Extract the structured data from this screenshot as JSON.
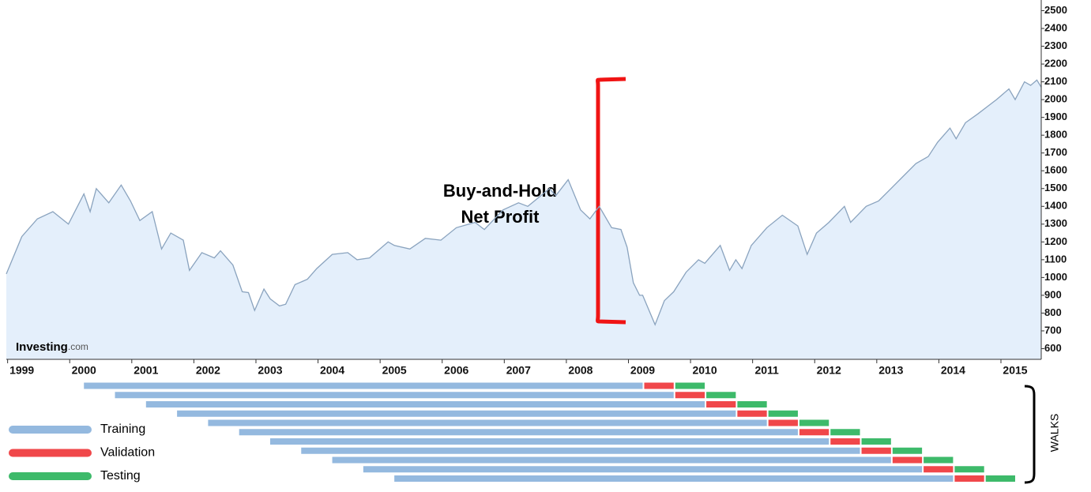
{
  "chart_data": {
    "type": "area",
    "annotation": [
      "Buy-and-Hold",
      "Net Profit"
    ],
    "brand": [
      "Investing",
      ".com"
    ],
    "x": [
      1998.75,
      1999.0,
      1999.25,
      1999.5,
      1999.75,
      2000.0,
      2000.1,
      2000.2,
      2000.4,
      2000.6,
      2000.75,
      2000.9,
      2001.1,
      2001.25,
      2001.4,
      2001.6,
      2001.7,
      2001.9,
      2002.1,
      2002.2,
      2002.4,
      2002.55,
      2002.65,
      2002.75,
      2002.9,
      2003.0,
      2003.15,
      2003.25,
      2003.4,
      2003.6,
      2003.75,
      2004.0,
      2004.25,
      2004.4,
      2004.6,
      2004.9,
      2005.0,
      2005.25,
      2005.5,
      2005.75,
      2006.0,
      2006.3,
      2006.45,
      2006.75,
      2007.0,
      2007.15,
      2007.5,
      2007.6,
      2007.8,
      2008.0,
      2008.15,
      2008.3,
      2008.5,
      2008.65,
      2008.75,
      2008.85,
      2008.95,
      2009.0,
      2009.2,
      2009.35,
      2009.5,
      2009.7,
      2009.9,
      2010.0,
      2010.25,
      2010.4,
      2010.5,
      2010.6,
      2010.75,
      2011.0,
      2011.25,
      2011.5,
      2011.65,
      2011.8,
      2012.0,
      2012.25,
      2012.35,
      2012.6,
      2012.8,
      2013.0,
      2013.2,
      2013.4,
      2013.6,
      2013.75,
      2013.95,
      2014.05,
      2014.2,
      2014.4,
      2014.55,
      2014.7,
      2014.9,
      2015.0,
      2015.15,
      2015.25,
      2015.35,
      2015.42
    ],
    "values": [
      1020,
      1230,
      1330,
      1370,
      1300,
      1470,
      1370,
      1500,
      1420,
      1520,
      1430,
      1320,
      1370,
      1160,
      1250,
      1210,
      1040,
      1140,
      1110,
      1150,
      1070,
      920,
      915,
      815,
      935,
      880,
      840,
      850,
      960,
      990,
      1050,
      1130,
      1140,
      1100,
      1110,
      1200,
      1180,
      1160,
      1220,
      1210,
      1280,
      1310,
      1270,
      1380,
      1420,
      1400,
      1500,
      1460,
      1550,
      1380,
      1330,
      1400,
      1280,
      1270,
      1170,
      970,
      900,
      900,
      735,
      870,
      920,
      1030,
      1100,
      1080,
      1180,
      1040,
      1100,
      1050,
      1180,
      1280,
      1350,
      1290,
      1130,
      1250,
      1310,
      1400,
      1310,
      1400,
      1430,
      1500,
      1570,
      1640,
      1680,
      1760,
      1840,
      1780,
      1870,
      1920,
      1960,
      2000,
      2060,
      2000,
      2100,
      2080,
      2110,
      2070
    ],
    "line_color": "#8aa3be",
    "fill_color": "#e4effb",
    "xlim": [
      1998.75,
      2015.42
    ],
    "xticks": [
      1999,
      2000,
      2001,
      2002,
      2003,
      2004,
      2005,
      2006,
      2007,
      2008,
      2009,
      2010,
      2011,
      2012,
      2013,
      2014,
      2015
    ],
    "ylim": [
      540,
      2560
    ],
    "yticks": [
      600,
      700,
      800,
      900,
      1000,
      1100,
      1200,
      1300,
      1400,
      1500,
      1600,
      1700,
      1800,
      1900,
      2000,
      2100,
      2200,
      2300,
      2400,
      2500
    ]
  },
  "walks": {
    "title": "WALKS",
    "legend": [
      {
        "name": "Training",
        "color": "#94b9df"
      },
      {
        "name": "Validation",
        "color": "#f0474a"
      },
      {
        "name": "Testing",
        "color": "#3dba6a"
      }
    ],
    "rows": [
      {
        "train_start": 2000.0,
        "train_end": 2009.0,
        "validation_end": 2009.5,
        "test_end": 2010.0
      },
      {
        "train_start": 2000.5,
        "train_end": 2009.5,
        "validation_end": 2010.0,
        "test_end": 2010.5
      },
      {
        "train_start": 2001.0,
        "train_end": 2010.0,
        "validation_end": 2010.5,
        "test_end": 2011.0
      },
      {
        "train_start": 2001.5,
        "train_end": 2010.5,
        "validation_end": 2011.0,
        "test_end": 2011.5
      },
      {
        "train_start": 2002.0,
        "train_end": 2011.0,
        "validation_end": 2011.5,
        "test_end": 2012.0
      },
      {
        "train_start": 2002.5,
        "train_end": 2011.5,
        "validation_end": 2012.0,
        "test_end": 2012.5
      },
      {
        "train_start": 2003.0,
        "train_end": 2012.0,
        "validation_end": 2012.5,
        "test_end": 2013.0
      },
      {
        "train_start": 2003.5,
        "train_end": 2012.5,
        "validation_end": 2013.0,
        "test_end": 2013.5
      },
      {
        "train_start": 2004.0,
        "train_end": 2013.0,
        "validation_end": 2013.5,
        "test_end": 2014.0
      },
      {
        "train_start": 2004.5,
        "train_end": 2013.5,
        "validation_end": 2014.0,
        "test_end": 2014.5
      },
      {
        "train_start": 2005.0,
        "train_end": 2014.0,
        "validation_end": 2014.5,
        "test_end": 2015.0
      }
    ]
  }
}
